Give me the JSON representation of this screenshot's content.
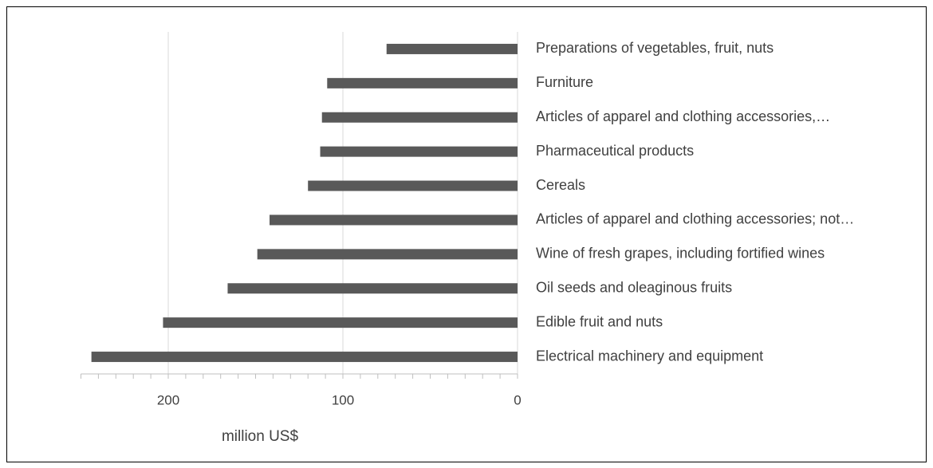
{
  "chart_data": {
    "type": "bar",
    "orientation": "horizontal",
    "x_reversed": true,
    "x_label": "million US$",
    "categories": [
      "Preparations of vegetables, fruit, nuts",
      "Furniture",
      "Articles of apparel and clothing accessories,…",
      "Pharmaceutical products",
      "Cereals",
      "Articles of apparel and clothing accessories; not…",
      "Wine of fresh grapes, including fortified wines",
      "Oil seeds and oleaginous fruits",
      "Edible fruit and nuts",
      "Electrical machinery and equipment"
    ],
    "values": [
      75,
      109,
      112,
      113,
      120,
      142,
      149,
      166,
      203,
      244
    ],
    "color": "#595959",
    "xlim": [
      0,
      250
    ],
    "xticks": [
      0,
      100,
      200
    ],
    "xminorticks": [
      0,
      10,
      20,
      30,
      40,
      50,
      60,
      70,
      80,
      90,
      100,
      110,
      120,
      130,
      140,
      150,
      160,
      170,
      180,
      190,
      200,
      210,
      220,
      230,
      240,
      250
    ],
    "grid": true
  }
}
